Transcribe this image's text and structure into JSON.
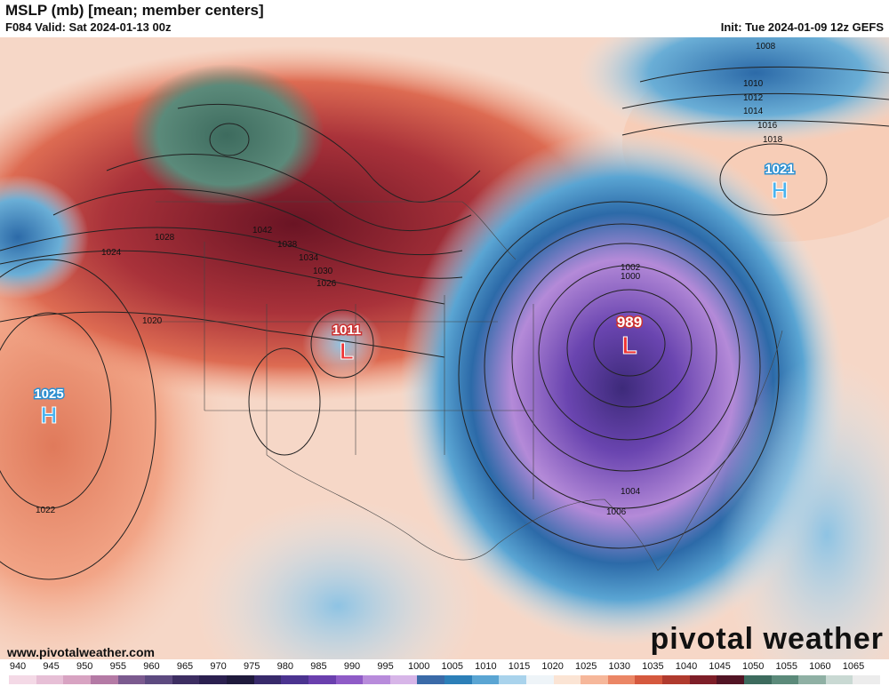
{
  "header": {
    "title": "MSLP (mb) [mean; member centers]",
    "valid": "F084 Valid: Sat 2024-01-13 00z",
    "init": "Init: Tue 2024-01-09 12z GEFS"
  },
  "footer": {
    "credit": "www.pivotalweather.com",
    "brand": "pivotal weather"
  },
  "centers": [
    {
      "type": "L",
      "value": "989"
    },
    {
      "type": "L",
      "value": "1011"
    },
    {
      "type": "H",
      "value": "1025"
    },
    {
      "type": "H",
      "value": "1021"
    }
  ],
  "isobar_labels": [
    "1008",
    "1010",
    "1012",
    "1014",
    "1016",
    "1018",
    "1020",
    "1022",
    "1024",
    "1026",
    "1028",
    "1030",
    "1034",
    "1038",
    "1042",
    "1004",
    "1006",
    "1000",
    "1002"
  ],
  "colorbar": {
    "ticks": [
      "940",
      "945",
      "950",
      "955",
      "960",
      "965",
      "970",
      "975",
      "980",
      "985",
      "990",
      "995",
      "1000",
      "1005",
      "1010",
      "1015",
      "1020",
      "1025",
      "1030",
      "1035",
      "1040",
      "1045",
      "1050",
      "1055",
      "1060",
      "1065"
    ],
    "colors": [
      "#f4d9e6",
      "#e7bfd6",
      "#d8a3c2",
      "#b47aa5",
      "#7b5a8f",
      "#5d4a80",
      "#3d2e62",
      "#2b2050",
      "#1f1a3c",
      "#382a6b",
      "#4b3390",
      "#6a3fae",
      "#8f5bc7",
      "#b88bdb",
      "#d7b5e8",
      "#3a6aa8",
      "#2c7fb8",
      "#5aa5d3",
      "#a9d3ec",
      "#eef4f8",
      "#fbe4d4",
      "#f6b79a",
      "#eb8665",
      "#d5593e",
      "#b03a2e",
      "#7e1e28",
      "#521424",
      "#3d6b5e",
      "#5b8a7a",
      "#8fb0a4",
      "#c9d9d3",
      "#ececec"
    ]
  }
}
